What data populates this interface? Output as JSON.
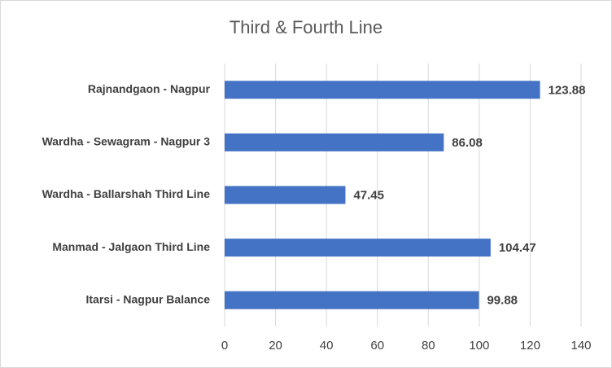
{
  "chart_data": {
    "type": "barh",
    "title": "Third & Fourth Line",
    "categories": [
      "Rajnandgaon - Nagpur",
      "Wardha - Sewagram - Nagpur 3",
      "Wardha - Ballarshah Third Line",
      "Manmad - Jalgaon Third Line",
      "Itarsi - Nagpur Balance"
    ],
    "values": [
      123.88,
      86.08,
      47.45,
      104.47,
      99.88
    ],
    "color": "#4472c4",
    "xlim": [
      0,
      140
    ],
    "xticks": [
      0,
      20,
      40,
      60,
      80,
      100,
      120,
      140
    ],
    "grid": true
  }
}
